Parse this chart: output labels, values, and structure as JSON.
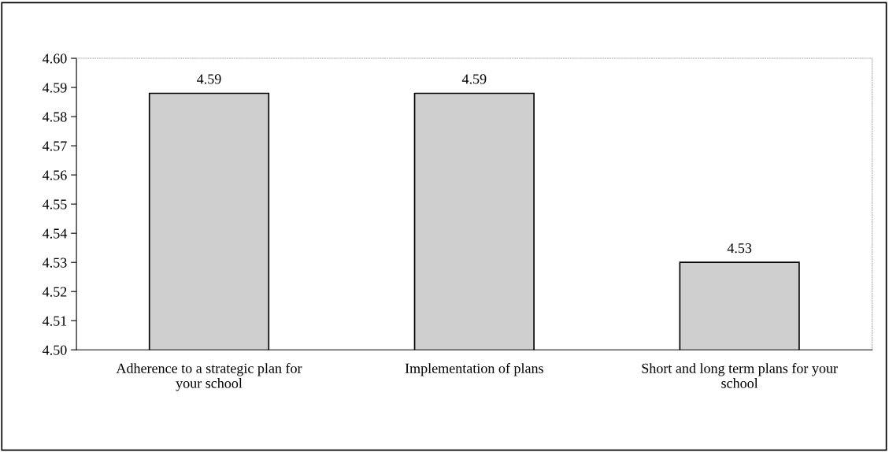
{
  "chart_data": {
    "type": "bar",
    "categories": [
      "Adherence to a strategic plan for\nyour school",
      "Implementation of plans",
      "Short and long term plans for your\nschool"
    ],
    "values": [
      4.588,
      4.588,
      4.53
    ],
    "value_labels": [
      "4.59",
      "4.59",
      "4.53"
    ],
    "color": "#cfcfcf",
    "ylim": [
      4.5,
      4.6
    ],
    "yticks": [
      {
        "value": 4.5,
        "label": "4.50"
      },
      {
        "value": 4.51,
        "label": "4.51"
      },
      {
        "value": 4.52,
        "label": "4.52"
      },
      {
        "value": 4.53,
        "label": "4.53"
      },
      {
        "value": 4.54,
        "label": "4.54"
      },
      {
        "value": 4.55,
        "label": "4.55"
      },
      {
        "value": 4.56,
        "label": "4.56"
      },
      {
        "value": 4.57,
        "label": "4.57"
      },
      {
        "value": 4.58,
        "label": "4.58"
      },
      {
        "value": 4.59,
        "label": "4.59"
      },
      {
        "value": 4.6,
        "label": "4.60"
      }
    ],
    "grid": false,
    "legend": false
  }
}
